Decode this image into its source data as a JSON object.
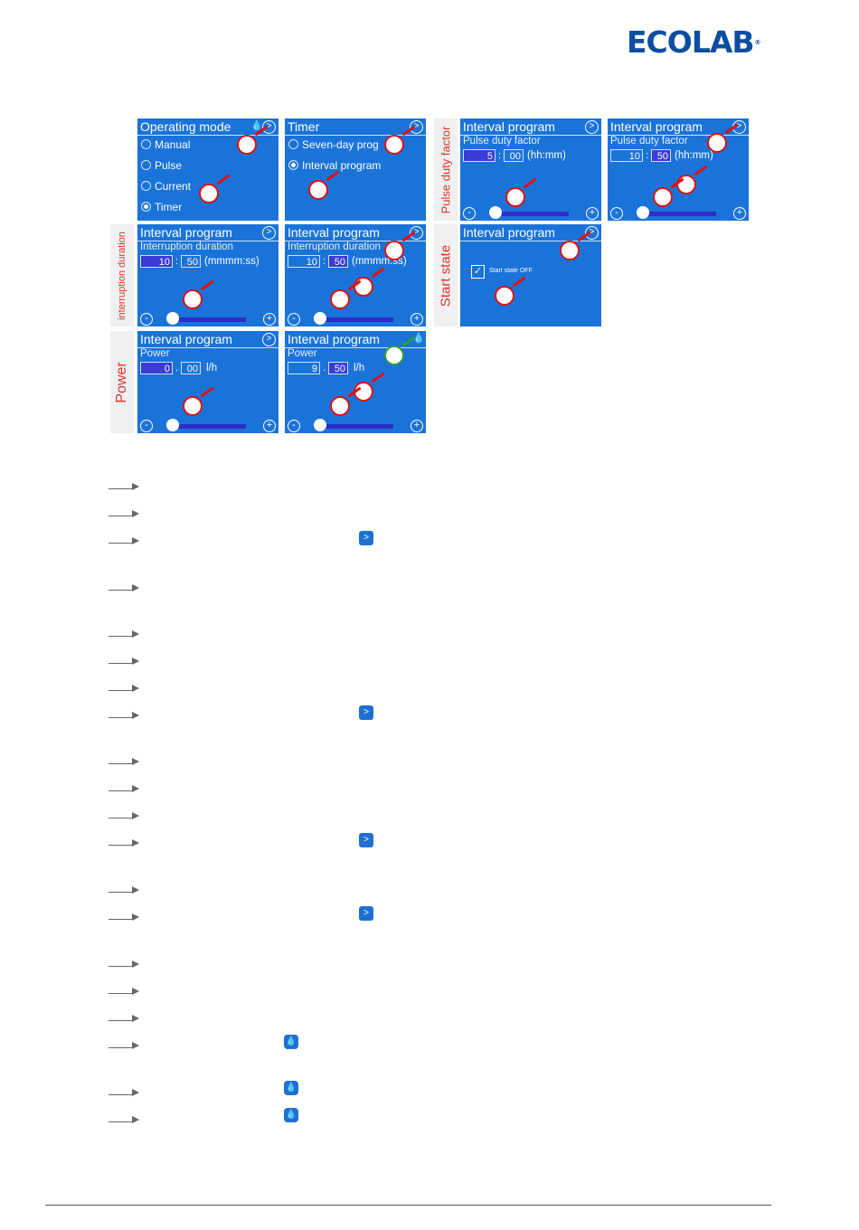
{
  "logo": "ECOLAB",
  "logo_mark": "®",
  "icons": {
    "next": "next-arrow-icon",
    "dosing": "drop-icon",
    "plus": "plus-icon",
    "minus": "minus-icon"
  },
  "screens": {
    "s1": {
      "title": "Operating mode",
      "options": [
        "Manual",
        "Pulse",
        "Current",
        "Timer"
      ]
    },
    "s2": {
      "title": "Timer",
      "options": [
        "Seven-day prog",
        "Interval program"
      ]
    },
    "s3": {
      "title": "Interval program",
      "sub": "Pulse duty factor",
      "v1": "5",
      "v2": "00",
      "unit": "(hh:mm)"
    },
    "s4": {
      "title": "Interval program",
      "sub": "Pulse duty factor",
      "v1": "10",
      "v2": "50",
      "unit": "(hh:mm)"
    },
    "s5": {
      "title": "Interval program",
      "sub": "Interruption duration",
      "v1": "10",
      "v2": "50",
      "unit": "(mmmm:ss)"
    },
    "s6": {
      "title": "Interval program",
      "sub": "Interruption duration",
      "v1": "10",
      "v2": "50",
      "unit": "(mmmm:ss)"
    },
    "s7": {
      "title": "Interval program",
      "check": "Start state OFF"
    },
    "s8": {
      "title": "Interval program",
      "sub": "Power",
      "v1": "0",
      "v2": "00",
      "unit": "l/h"
    },
    "s9": {
      "title": "Interval program",
      "sub": "Power",
      "v1": "9",
      "v2": "50",
      "unit": "l/h"
    }
  },
  "side_labels": {
    "pulse": "Pulse duty factor",
    "interruption": "interruption duration",
    "start": "Start state",
    "power": "Power"
  },
  "separators": {
    "colon": ":",
    "dot": "."
  },
  "slider": {
    "minus": "-",
    "plus": "+"
  }
}
